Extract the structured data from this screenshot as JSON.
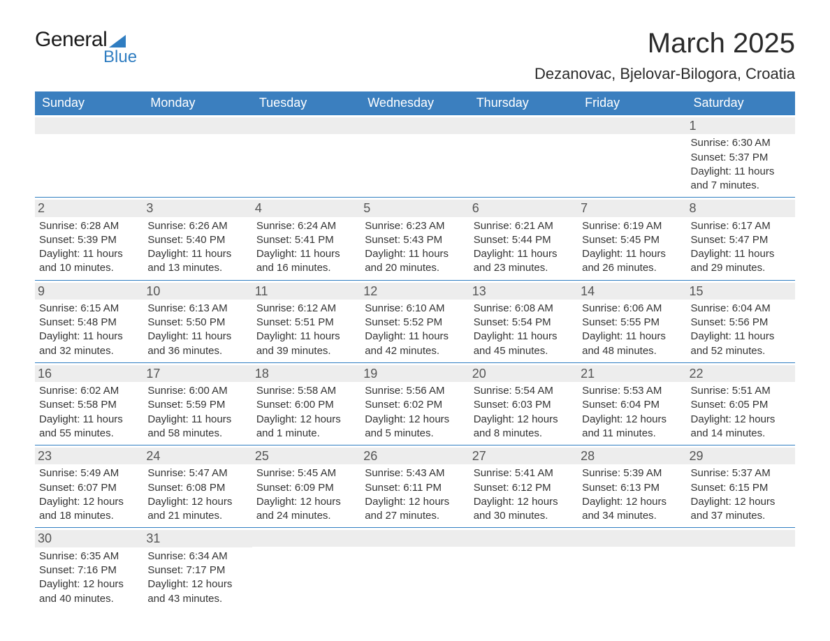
{
  "logo": {
    "word1": "General",
    "word2": "Blue"
  },
  "title": "March 2025",
  "location": "Dezanovac, Bjelovar-Bilogora, Croatia",
  "colors": {
    "header_bg": "#3b7fbf",
    "header_text": "#ffffff",
    "row_sep": "#2f7dc1",
    "daynum_bg": "#ededed",
    "daynum_text": "#555555",
    "body_text": "#333333",
    "logo_accent": "#2f7dc1"
  },
  "daysOfWeek": [
    "Sunday",
    "Monday",
    "Tuesday",
    "Wednesday",
    "Thursday",
    "Friday",
    "Saturday"
  ],
  "weeks": [
    [
      {
        "n": "",
        "sr": "",
        "ss": "",
        "dl": ""
      },
      {
        "n": "",
        "sr": "",
        "ss": "",
        "dl": ""
      },
      {
        "n": "",
        "sr": "",
        "ss": "",
        "dl": ""
      },
      {
        "n": "",
        "sr": "",
        "ss": "",
        "dl": ""
      },
      {
        "n": "",
        "sr": "",
        "ss": "",
        "dl": ""
      },
      {
        "n": "",
        "sr": "",
        "ss": "",
        "dl": ""
      },
      {
        "n": "1",
        "sr": "Sunrise: 6:30 AM",
        "ss": "Sunset: 5:37 PM",
        "dl": "Daylight: 11 hours and 7 minutes."
      }
    ],
    [
      {
        "n": "2",
        "sr": "Sunrise: 6:28 AM",
        "ss": "Sunset: 5:39 PM",
        "dl": "Daylight: 11 hours and 10 minutes."
      },
      {
        "n": "3",
        "sr": "Sunrise: 6:26 AM",
        "ss": "Sunset: 5:40 PM",
        "dl": "Daylight: 11 hours and 13 minutes."
      },
      {
        "n": "4",
        "sr": "Sunrise: 6:24 AM",
        "ss": "Sunset: 5:41 PM",
        "dl": "Daylight: 11 hours and 16 minutes."
      },
      {
        "n": "5",
        "sr": "Sunrise: 6:23 AM",
        "ss": "Sunset: 5:43 PM",
        "dl": "Daylight: 11 hours and 20 minutes."
      },
      {
        "n": "6",
        "sr": "Sunrise: 6:21 AM",
        "ss": "Sunset: 5:44 PM",
        "dl": "Daylight: 11 hours and 23 minutes."
      },
      {
        "n": "7",
        "sr": "Sunrise: 6:19 AM",
        "ss": "Sunset: 5:45 PM",
        "dl": "Daylight: 11 hours and 26 minutes."
      },
      {
        "n": "8",
        "sr": "Sunrise: 6:17 AM",
        "ss": "Sunset: 5:47 PM",
        "dl": "Daylight: 11 hours and 29 minutes."
      }
    ],
    [
      {
        "n": "9",
        "sr": "Sunrise: 6:15 AM",
        "ss": "Sunset: 5:48 PM",
        "dl": "Daylight: 11 hours and 32 minutes."
      },
      {
        "n": "10",
        "sr": "Sunrise: 6:13 AM",
        "ss": "Sunset: 5:50 PM",
        "dl": "Daylight: 11 hours and 36 minutes."
      },
      {
        "n": "11",
        "sr": "Sunrise: 6:12 AM",
        "ss": "Sunset: 5:51 PM",
        "dl": "Daylight: 11 hours and 39 minutes."
      },
      {
        "n": "12",
        "sr": "Sunrise: 6:10 AM",
        "ss": "Sunset: 5:52 PM",
        "dl": "Daylight: 11 hours and 42 minutes."
      },
      {
        "n": "13",
        "sr": "Sunrise: 6:08 AM",
        "ss": "Sunset: 5:54 PM",
        "dl": "Daylight: 11 hours and 45 minutes."
      },
      {
        "n": "14",
        "sr": "Sunrise: 6:06 AM",
        "ss": "Sunset: 5:55 PM",
        "dl": "Daylight: 11 hours and 48 minutes."
      },
      {
        "n": "15",
        "sr": "Sunrise: 6:04 AM",
        "ss": "Sunset: 5:56 PM",
        "dl": "Daylight: 11 hours and 52 minutes."
      }
    ],
    [
      {
        "n": "16",
        "sr": "Sunrise: 6:02 AM",
        "ss": "Sunset: 5:58 PM",
        "dl": "Daylight: 11 hours and 55 minutes."
      },
      {
        "n": "17",
        "sr": "Sunrise: 6:00 AM",
        "ss": "Sunset: 5:59 PM",
        "dl": "Daylight: 11 hours and 58 minutes."
      },
      {
        "n": "18",
        "sr": "Sunrise: 5:58 AM",
        "ss": "Sunset: 6:00 PM",
        "dl": "Daylight: 12 hours and 1 minute."
      },
      {
        "n": "19",
        "sr": "Sunrise: 5:56 AM",
        "ss": "Sunset: 6:02 PM",
        "dl": "Daylight: 12 hours and 5 minutes."
      },
      {
        "n": "20",
        "sr": "Sunrise: 5:54 AM",
        "ss": "Sunset: 6:03 PM",
        "dl": "Daylight: 12 hours and 8 minutes."
      },
      {
        "n": "21",
        "sr": "Sunrise: 5:53 AM",
        "ss": "Sunset: 6:04 PM",
        "dl": "Daylight: 12 hours and 11 minutes."
      },
      {
        "n": "22",
        "sr": "Sunrise: 5:51 AM",
        "ss": "Sunset: 6:05 PM",
        "dl": "Daylight: 12 hours and 14 minutes."
      }
    ],
    [
      {
        "n": "23",
        "sr": "Sunrise: 5:49 AM",
        "ss": "Sunset: 6:07 PM",
        "dl": "Daylight: 12 hours and 18 minutes."
      },
      {
        "n": "24",
        "sr": "Sunrise: 5:47 AM",
        "ss": "Sunset: 6:08 PM",
        "dl": "Daylight: 12 hours and 21 minutes."
      },
      {
        "n": "25",
        "sr": "Sunrise: 5:45 AM",
        "ss": "Sunset: 6:09 PM",
        "dl": "Daylight: 12 hours and 24 minutes."
      },
      {
        "n": "26",
        "sr": "Sunrise: 5:43 AM",
        "ss": "Sunset: 6:11 PM",
        "dl": "Daylight: 12 hours and 27 minutes."
      },
      {
        "n": "27",
        "sr": "Sunrise: 5:41 AM",
        "ss": "Sunset: 6:12 PM",
        "dl": "Daylight: 12 hours and 30 minutes."
      },
      {
        "n": "28",
        "sr": "Sunrise: 5:39 AM",
        "ss": "Sunset: 6:13 PM",
        "dl": "Daylight: 12 hours and 34 minutes."
      },
      {
        "n": "29",
        "sr": "Sunrise: 5:37 AM",
        "ss": "Sunset: 6:15 PM",
        "dl": "Daylight: 12 hours and 37 minutes."
      }
    ],
    [
      {
        "n": "30",
        "sr": "Sunrise: 6:35 AM",
        "ss": "Sunset: 7:16 PM",
        "dl": "Daylight: 12 hours and 40 minutes."
      },
      {
        "n": "31",
        "sr": "Sunrise: 6:34 AM",
        "ss": "Sunset: 7:17 PM",
        "dl": "Daylight: 12 hours and 43 minutes."
      },
      {
        "n": "",
        "sr": "",
        "ss": "",
        "dl": ""
      },
      {
        "n": "",
        "sr": "",
        "ss": "",
        "dl": ""
      },
      {
        "n": "",
        "sr": "",
        "ss": "",
        "dl": ""
      },
      {
        "n": "",
        "sr": "",
        "ss": "",
        "dl": ""
      },
      {
        "n": "",
        "sr": "",
        "ss": "",
        "dl": ""
      }
    ]
  ]
}
